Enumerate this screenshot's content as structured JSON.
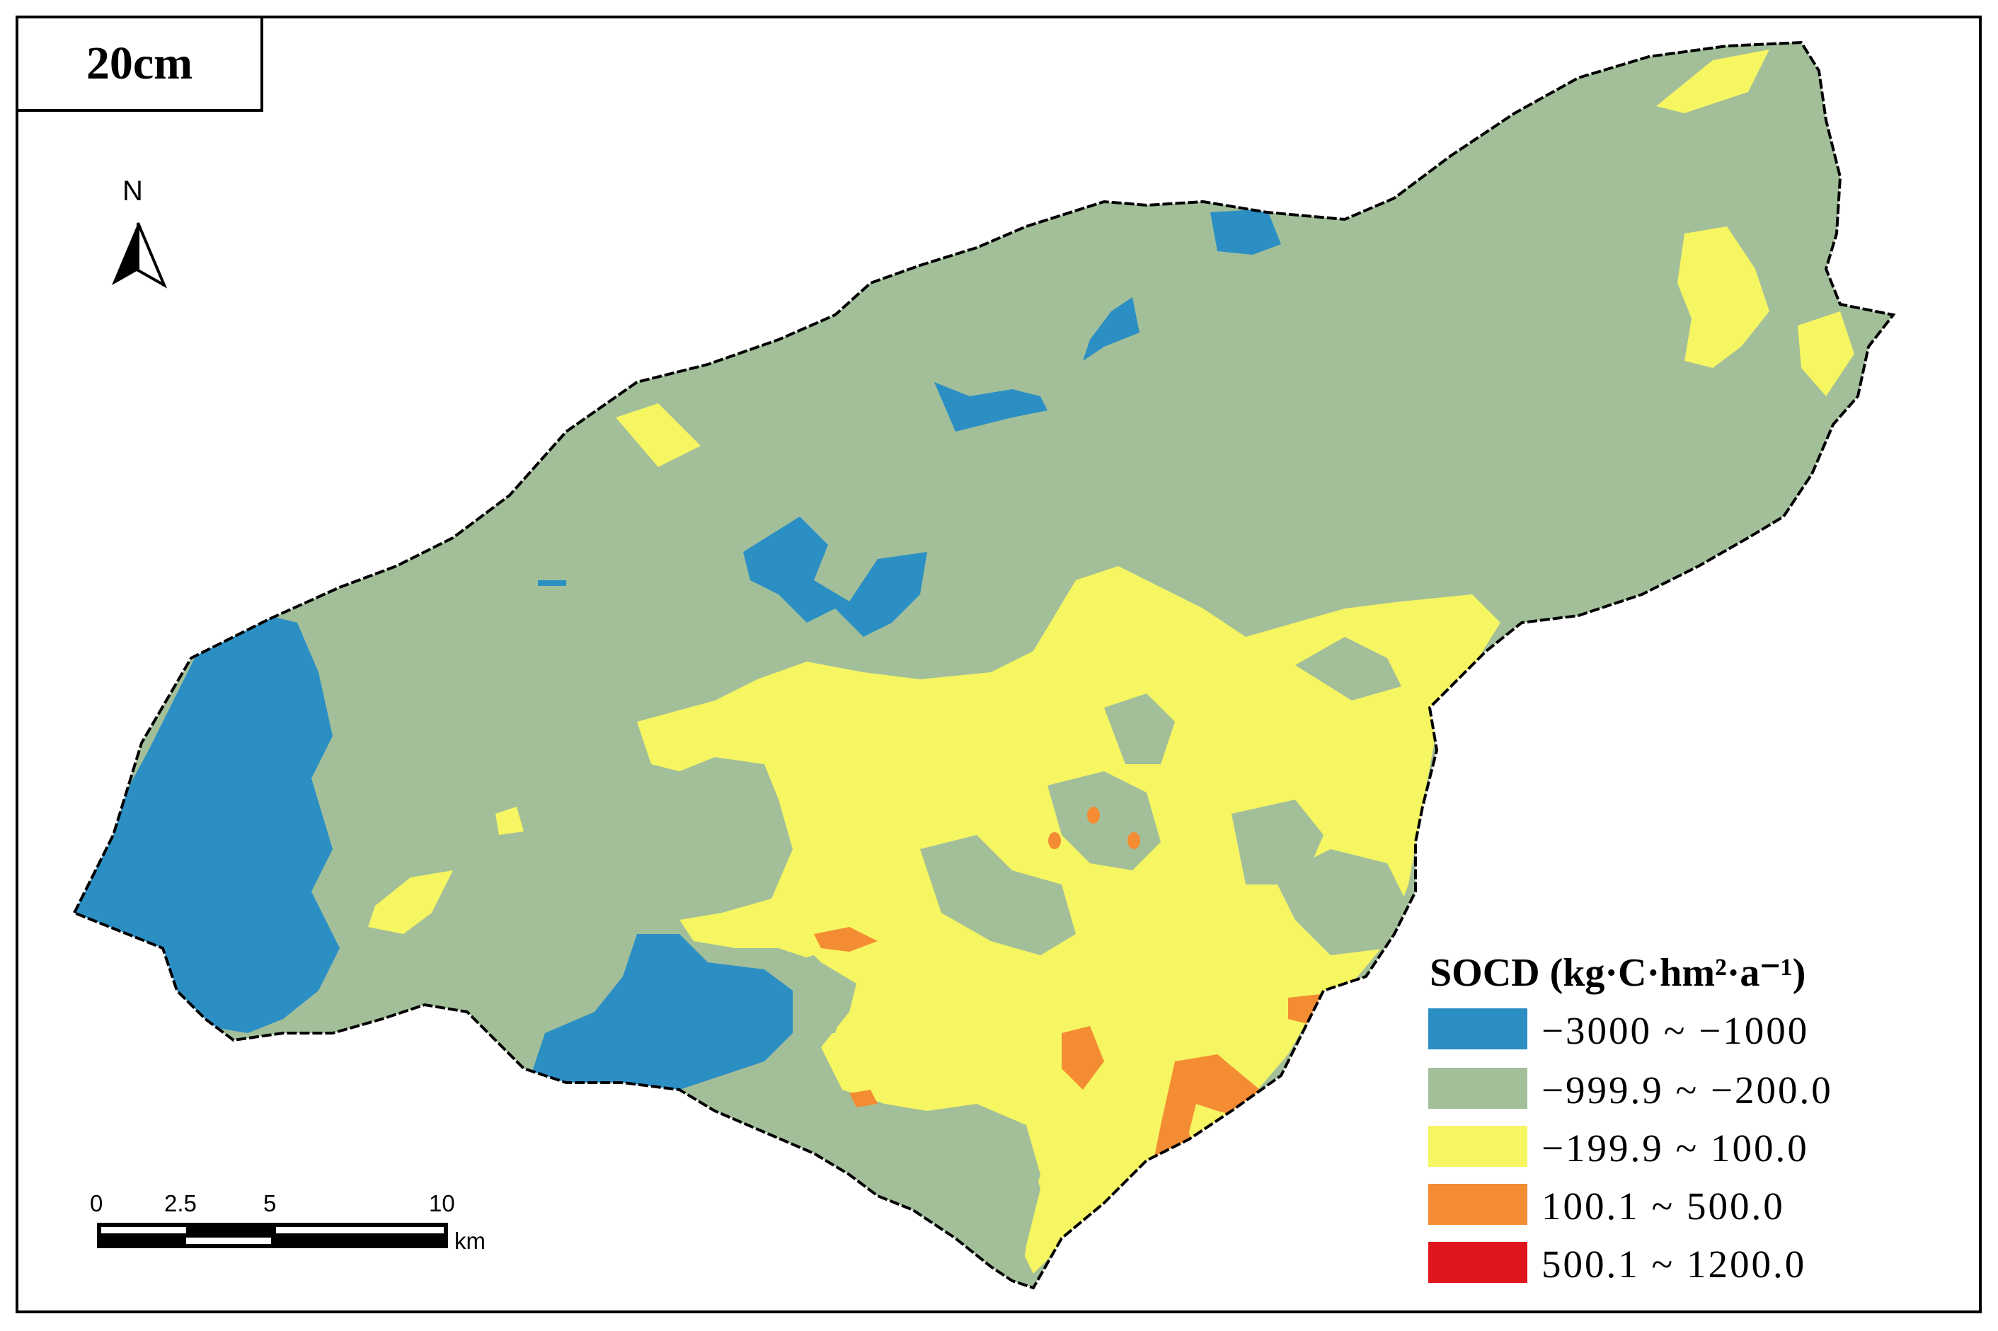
{
  "map": {
    "depth_label": "20cm",
    "north_label": "N",
    "scale_bar": {
      "ticks": [
        "0",
        "2.5",
        "5",
        "10"
      ],
      "unit": "km"
    },
    "legend": {
      "title": "SOCD (kg·C·hm²·a⁻¹)",
      "classes": [
        {
          "label": "−3000 ~ −1000",
          "color": "#2b8fc4"
        },
        {
          "label": "−999.9 ~ −200.0",
          "color": "#a2bf9a"
        },
        {
          "label": "−199.9 ~ 100.0",
          "color": "#f6f562"
        },
        {
          "label": "100.1 ~ 500.0",
          "color": "#f48c33"
        },
        {
          "label": "500.1 ~ 1200.0",
          "color": "#e0161e"
        }
      ]
    }
  }
}
